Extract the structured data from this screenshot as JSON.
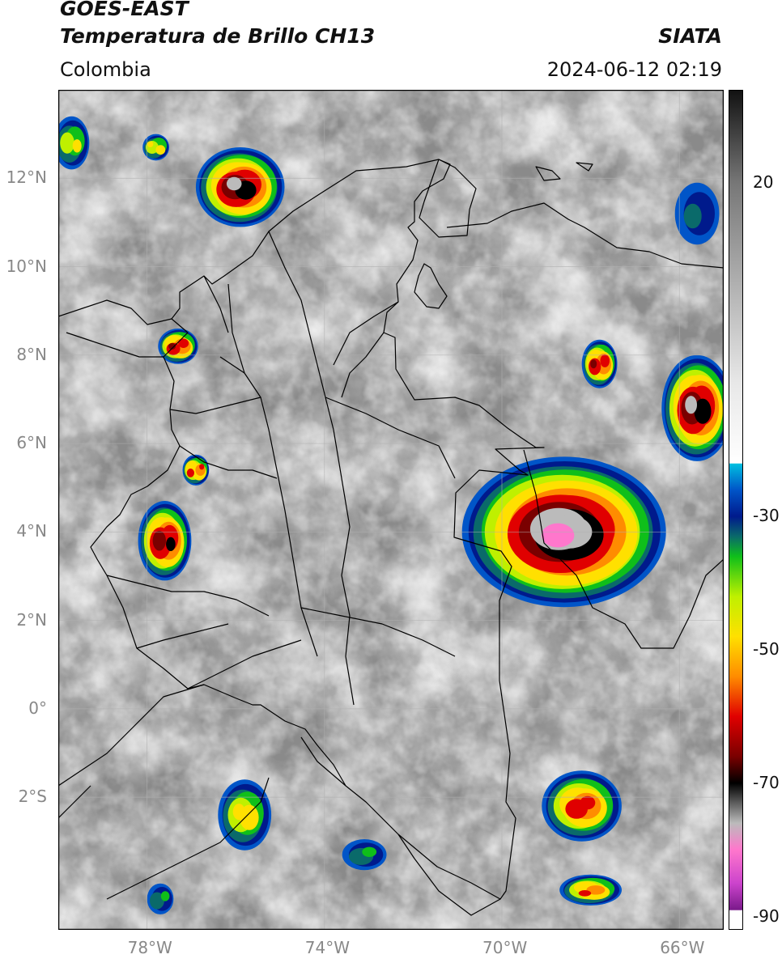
{
  "header": {
    "satellite": "GOES-EAST",
    "product": "Temperatura de Brillo CH13",
    "organization": "SIATA",
    "region": "Colombia",
    "datetime": "2024-06-12 02:19"
  },
  "map": {
    "lon_range": [
      -80,
      -65
    ],
    "lat_range": [
      -5,
      14
    ],
    "lat_ticks": [
      {
        "value": 12,
        "label": "12°N"
      },
      {
        "value": 10,
        "label": "10°N"
      },
      {
        "value": 8,
        "label": "8°N"
      },
      {
        "value": 6,
        "label": "6°N"
      },
      {
        "value": 4,
        "label": "4°N"
      },
      {
        "value": 2,
        "label": "2°N"
      },
      {
        "value": 0,
        "label": "0°"
      },
      {
        "value": -2,
        "label": "2°S"
      }
    ],
    "lon_ticks": [
      {
        "value": -78,
        "label": "78°W"
      },
      {
        "value": -74,
        "label": "74°W"
      },
      {
        "value": -70,
        "label": "70°W"
      },
      {
        "value": -66,
        "label": "66°W"
      }
    ],
    "grid": true,
    "colors": {
      "cloud_bg": "#8a8a8a",
      "border": "#000000",
      "grid": "#b0b0b0"
    }
  },
  "colorbar": {
    "range": [
      -92,
      34
    ],
    "ticks": [
      {
        "value": 20,
        "label": "20"
      },
      {
        "value": -30,
        "label": "-30"
      },
      {
        "value": -50,
        "label": "-50"
      },
      {
        "value": -70,
        "label": "-70"
      },
      {
        "value": -90,
        "label": "-90"
      }
    ],
    "stops": [
      {
        "t": 34,
        "color": "#111111"
      },
      {
        "t": 20,
        "color": "#777777"
      },
      {
        "t": -10,
        "color": "#e8e8e8"
      },
      {
        "t": -22,
        "color": "#ffffff"
      },
      {
        "t": -22.1,
        "color": "#00bfe0"
      },
      {
        "t": -26,
        "color": "#0055c8"
      },
      {
        "t": -30,
        "color": "#001a8c"
      },
      {
        "t": -33,
        "color": "#0a6a6a"
      },
      {
        "t": -36,
        "color": "#0fbf1a"
      },
      {
        "t": -42,
        "color": "#bff000"
      },
      {
        "t": -48,
        "color": "#ffe000"
      },
      {
        "t": -54,
        "color": "#ff8c00"
      },
      {
        "t": -60,
        "color": "#e00000"
      },
      {
        "t": -66,
        "color": "#7a0000"
      },
      {
        "t": -70,
        "color": "#000000"
      },
      {
        "t": -76,
        "color": "#bbbbbb"
      },
      {
        "t": -80,
        "color": "#ff77cc"
      },
      {
        "t": -85,
        "color": "#cc44cc"
      },
      {
        "t": -89,
        "color": "#7a1a8a"
      },
      {
        "t": -89.1,
        "color": "#ffffff"
      },
      {
        "t": -92,
        "color": "#ffffff"
      }
    ]
  },
  "storms": [
    {
      "name": "convective-cell-venezuela-east",
      "lon": -68.6,
      "lat": 4.0,
      "rx": 2.3,
      "ry": 1.7,
      "peak": -82
    },
    {
      "name": "convective-cell-caribbean",
      "lon": -75.9,
      "lat": 11.8,
      "rx": 1.0,
      "ry": 0.9,
      "peak": -74
    },
    {
      "name": "convective-cell-far-east",
      "lon": -65.6,
      "lat": 6.8,
      "rx": 0.8,
      "ry": 1.2,
      "peak": -72
    },
    {
      "name": "convective-cell-pacific-coast",
      "lon": -77.6,
      "lat": 3.8,
      "rx": 0.6,
      "ry": 0.9,
      "peak": -68
    },
    {
      "name": "convective-cell-uraba",
      "lon": -77.3,
      "lat": 8.2,
      "rx": 0.45,
      "ry": 0.4,
      "peak": -66
    },
    {
      "name": "convective-cell-venezuela-north",
      "lon": -67.8,
      "lat": 7.8,
      "rx": 0.4,
      "ry": 0.55,
      "peak": -64
    },
    {
      "name": "convective-cell-amazon-south",
      "lon": -68.2,
      "lat": -2.2,
      "rx": 0.9,
      "ry": 0.8,
      "peak": -62
    },
    {
      "name": "convective-cell-ecuador",
      "lon": -75.8,
      "lat": -2.4,
      "rx": 0.6,
      "ry": 0.8,
      "peak": -48
    },
    {
      "name": "convective-cell-choco",
      "lon": -76.9,
      "lat": 5.4,
      "rx": 0.3,
      "ry": 0.35,
      "peak": -60
    },
    {
      "name": "convective-cell-amazon-se",
      "lon": -68.0,
      "lat": -4.1,
      "rx": 0.7,
      "ry": 0.35,
      "peak": -58
    },
    {
      "name": "convective-cell-northwest",
      "lon": -79.7,
      "lat": 12.8,
      "rx": 0.4,
      "ry": 0.6,
      "peak": -44
    },
    {
      "name": "convective-cell-caribbean-small",
      "lon": -77.8,
      "lat": 12.7,
      "rx": 0.3,
      "ry": 0.3,
      "peak": -48
    },
    {
      "name": "convective-cell-amazon-west",
      "lon": -73.1,
      "lat": -3.3,
      "rx": 0.5,
      "ry": 0.35,
      "peak": -36
    },
    {
      "name": "convective-cell-peru",
      "lon": -77.7,
      "lat": -4.3,
      "rx": 0.3,
      "ry": 0.35,
      "peak": -36
    },
    {
      "name": "convective-cell-east-coast",
      "lon": -65.6,
      "lat": 11.2,
      "rx": 0.5,
      "ry": 0.7,
      "peak": -34
    }
  ]
}
